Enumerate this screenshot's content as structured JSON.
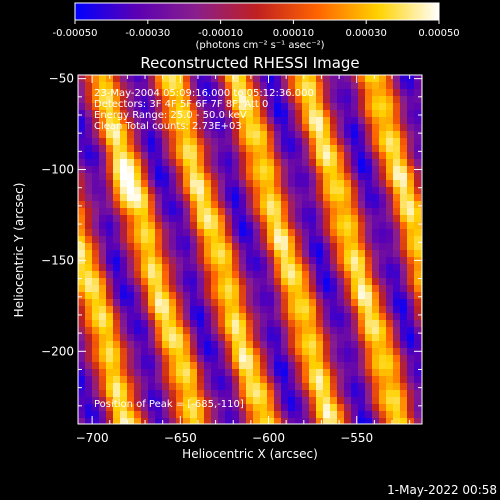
{
  "chart_data": {
    "type": "heatmap",
    "title": "Reconstructed RHESSI Image",
    "xlabel": "Heliocentric X (arcsec)",
    "ylabel": "Heliocentric Y (arcsec)",
    "xlim": [
      -708,
      -513
    ],
    "ylim": [
      -240,
      -48
    ],
    "x_ticks": [
      -700,
      -650,
      -600,
      -550
    ],
    "y_ticks": [
      -50,
      -100,
      -150,
      -200
    ],
    "colorbar": {
      "range": [
        -0.0005,
        0.0005
      ],
      "ticks": [
        "-0.00050",
        "-0.00030",
        "-0.00010",
        "0.00010",
        "0.00030",
        "0.00050"
      ],
      "units": "(photons cm⁻² s⁻¹ asec⁻²)",
      "colors": [
        "#0000ff",
        "#5a00b4",
        "#8a1e8c",
        "#c02020",
        "#ff6400",
        "#ffd200",
        "#ffffff"
      ]
    },
    "annotations": [
      "23-May-2004 05:09:16.000 to 05:12:36.000",
      "Detectors: 3F 4F 5F 6F 7F 8F, Att 0",
      "Energy Range: 25.0 - 50.0 keV",
      "Clean    Total counts: 2.73E+03"
    ],
    "peak_label": "Position of Peak = [-685,-110]",
    "peak": [
      -685,
      -110
    ],
    "stripes": {
      "description_values": "ridge x-offsets (arcsec at y=-48) of bright bands",
      "bright_x_at_top": [
        -695,
        -655,
        -617,
        -578,
        -540
      ],
      "slope_dx_per_dy": -0.28
    }
  },
  "footer_timestamp": "1-May-2022 00:58"
}
